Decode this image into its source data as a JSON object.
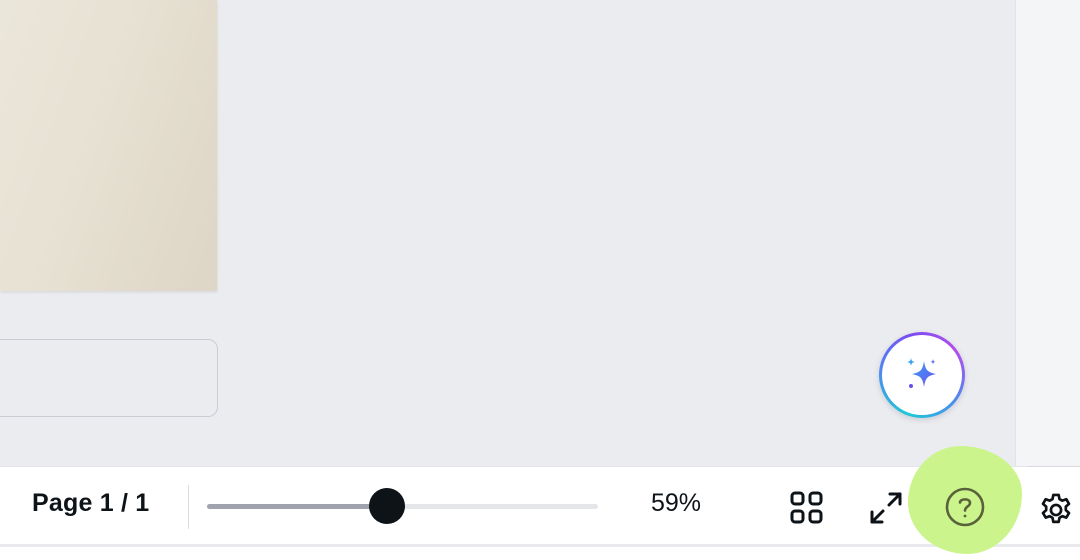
{
  "canvas": {
    "magic_button_icon": "sparkles-icon"
  },
  "footer": {
    "page_indicator": "Page 1 / 1",
    "zoom": {
      "value_label": "59%",
      "percent": 59,
      "slider_fraction": 0.46
    },
    "buttons": {
      "grid_view_icon": "grid-icon",
      "fullscreen_icon": "expand-arrows-icon",
      "help_icon": "question-circle-icon",
      "settings_icon": "gear-icon"
    }
  },
  "colors": {
    "canvas_bg": "#ebecf0",
    "text": "#0e1318",
    "help_highlight": "#cbf58c",
    "accent_gradient_start": "#1fc9d6",
    "accent_gradient_end": "#7a4df2"
  }
}
